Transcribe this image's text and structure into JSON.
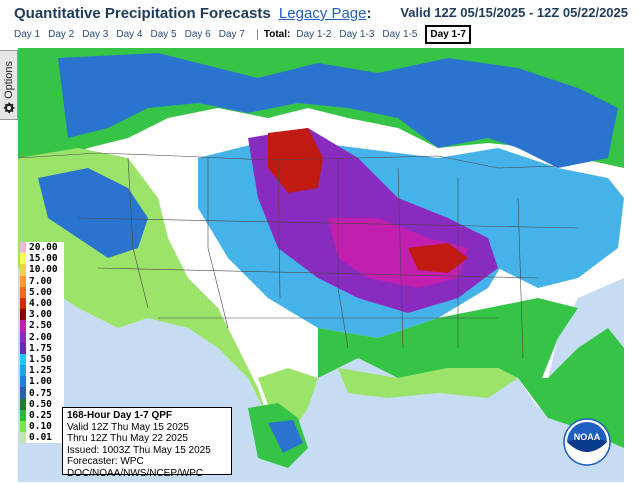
{
  "header": {
    "title": "Quantitative Precipitation Forecasts",
    "legacy_link": "Legacy Page",
    "colon": ":",
    "valid_range": "Valid 12Z 05/15/2025 - 12Z 05/22/2025"
  },
  "tabs": {
    "days": [
      "Day 1",
      "Day 2",
      "Day 3",
      "Day 4",
      "Day 5",
      "Day 6",
      "Day 7"
    ],
    "total_label": "Total:",
    "totals": [
      "Day 1-2",
      "Day 1-3",
      "Day 1-5"
    ],
    "active": "Day 1-7"
  },
  "options": {
    "label": "Options",
    "icon": "gear-icon"
  },
  "legend": {
    "values": [
      "20.00",
      "15.00",
      "10.00",
      "7.00",
      "5.00",
      "4.00",
      "3.00",
      "2.50",
      "2.00",
      "1.75",
      "1.50",
      "1.25",
      "1.00",
      "0.75",
      "0.50",
      "0.25",
      "0.10",
      "0.01"
    ],
    "colors": [
      "#f2b8d8",
      "#ffff4d",
      "#f2d24a",
      "#ff9a2e",
      "#f06a1a",
      "#d12a00",
      "#8f0000",
      "#c21fb0",
      "#8a2bbf",
      "#6b2bb0",
      "#26c8f0",
      "#1aa6e0",
      "#1f7fd6",
      "#2a5fb0",
      "#1f7f2e",
      "#2fb83a",
      "#7fe34a",
      "#bde8a8"
    ]
  },
  "info_box": {
    "title": "168-Hour Day 1-7 QPF",
    "lines": [
      "Valid 12Z Thu May 15 2025",
      "Thru 12Z Thu May 22 2025",
      "Issued: 1003Z Thu May 15 2025",
      "Forecaster: WPC",
      "DOC/NOAA/NWS/NCEP/WPC"
    ]
  },
  "logo": {
    "text": "NOAA"
  },
  "colors": {
    "ocean": "#c6dcf2",
    "land_none": "#ffffff",
    "light_green": "#9ce36a",
    "green": "#36c446",
    "dark_green": "#1f8a34",
    "light_blue": "#46b2ea",
    "blue": "#2a74d0",
    "purple": "#8a2bbf",
    "magenta": "#c21fb0",
    "red": "#c11a12"
  }
}
